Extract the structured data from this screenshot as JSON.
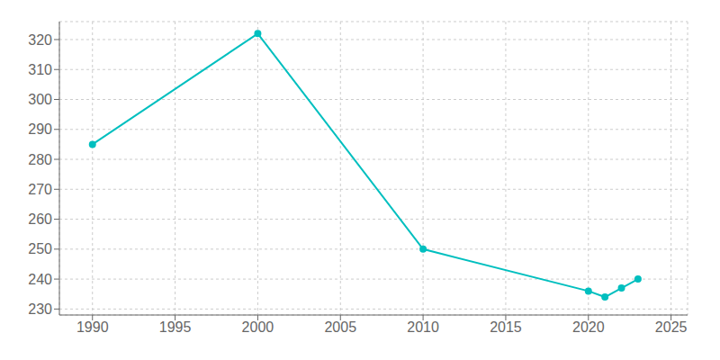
{
  "chart_data": {
    "type": "line",
    "x": [
      1990,
      2000,
      2010,
      2020,
      2021,
      2022,
      2023
    ],
    "values": [
      285,
      322,
      250,
      236,
      234,
      237,
      240
    ],
    "color": "#00BFBF",
    "marker": "circle",
    "xlim": [
      1988,
      2026
    ],
    "ylim": [
      228,
      326
    ],
    "xticks": [
      1990,
      1995,
      2000,
      2005,
      2010,
      2015,
      2020,
      2025
    ],
    "yticks": [
      230,
      240,
      250,
      260,
      270,
      280,
      290,
      300,
      310,
      320
    ],
    "grid": true
  }
}
